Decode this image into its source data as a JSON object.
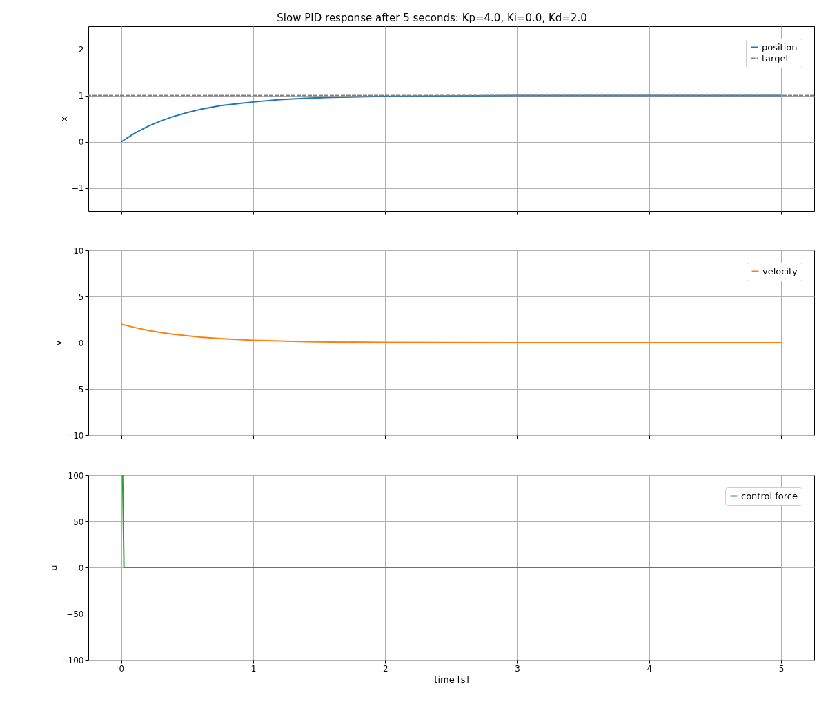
{
  "chart_data": [
    {
      "type": "line",
      "title": "Slow PID response after 5 seconds: Kp=4.0, Ki=0.0, Kd=2.0",
      "ylabel": "x",
      "xlim": [
        -0.25,
        5.25
      ],
      "xticks": [
        0,
        1,
        2,
        3,
        4,
        5
      ],
      "ylim": [
        -1.5,
        2.5
      ],
      "yticks": [
        {
          "value": -1,
          "label": "−1"
        },
        {
          "value": 0,
          "label": "0"
        },
        {
          "value": 1,
          "label": "1"
        },
        {
          "value": 2,
          "label": "2"
        }
      ],
      "grid": true,
      "legend": "top right",
      "tick_labels": "y",
      "series": [
        {
          "name": "position",
          "color": "#1f77b4",
          "x": [
            0,
            0.1,
            0.2,
            0.3,
            0.4,
            0.5,
            0.6,
            0.75,
            0.9,
            1.0,
            1.2,
            1.4,
            1.6,
            1.8,
            2.0,
            2.5,
            3.0,
            4.0,
            5.0
          ],
          "values": [
            0.0,
            0.18,
            0.33,
            0.45,
            0.55,
            0.63,
            0.7,
            0.78,
            0.83,
            0.86,
            0.91,
            0.94,
            0.96,
            0.97,
            0.98,
            0.99,
            1.0,
            1.0,
            1.0
          ]
        }
      ],
      "ref_lines": [
        {
          "axis": "y",
          "value": 1,
          "label": "target",
          "color": "#808080",
          "line_style": "dashed"
        }
      ]
    },
    {
      "type": "line",
      "ylabel": "v",
      "xlim": [
        -0.25,
        5.25
      ],
      "xticks": [
        0,
        1,
        2,
        3,
        4,
        5
      ],
      "ylim": [
        -10,
        10
      ],
      "yticks": [
        {
          "value": -10,
          "label": "−10"
        },
        {
          "value": -5,
          "label": "−5"
        },
        0,
        5,
        10
      ],
      "grid": true,
      "legend": "top right",
      "tick_labels": "y",
      "series": [
        {
          "name": "velocity",
          "color": "#ff7f0e",
          "x": [
            0,
            0.1,
            0.2,
            0.3,
            0.4,
            0.5,
            0.6,
            0.75,
            0.9,
            1.0,
            1.2,
            1.4,
            1.6,
            2.0,
            2.5,
            3.0,
            4.0,
            5.0
          ],
          "values": [
            2.0,
            1.65,
            1.35,
            1.1,
            0.9,
            0.75,
            0.6,
            0.45,
            0.33,
            0.27,
            0.18,
            0.12,
            0.08,
            0.04,
            0.01,
            0.0,
            0.0,
            0.0
          ]
        }
      ]
    },
    {
      "type": "line",
      "ylabel": "u",
      "xlabel": "time [s]",
      "xlim": [
        -0.25,
        5.25
      ],
      "xticks": [
        0,
        1,
        2,
        3,
        4,
        5
      ],
      "ylim": [
        -100,
        100
      ],
      "yticks": [
        {
          "value": -100,
          "label": "−100"
        },
        {
          "value": -50,
          "label": "−50"
        },
        0,
        50,
        100
      ],
      "grid": true,
      "legend": "top right",
      "series": [
        {
          "name": "control force",
          "color": "#2ca02c",
          "x": [
            0.01,
            0.02,
            5.0
          ],
          "values": [
            100,
            0,
            0
          ]
        }
      ]
    }
  ]
}
